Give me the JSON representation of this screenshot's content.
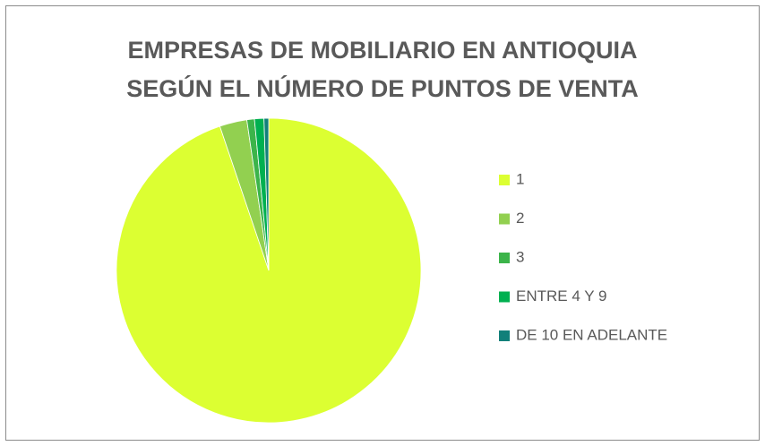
{
  "chart_data": {
    "type": "pie",
    "title": [
      "EMPRESAS DE MOBILIARIO EN ANTIOQUIA",
      "SEGÚN EL NÚMERO DE PUNTOS DE VENTA"
    ],
    "categories": [
      "1",
      "2",
      "3",
      "ENTRE 4 Y 9",
      "DE 10 EN ADELANTE"
    ],
    "values": [
      94.8,
      2.9,
      0.8,
      1.0,
      0.5
    ],
    "colors": [
      "#dcff32",
      "#92d050",
      "#3cb44a",
      "#00b050",
      "#12807a"
    ],
    "legend": "right"
  }
}
